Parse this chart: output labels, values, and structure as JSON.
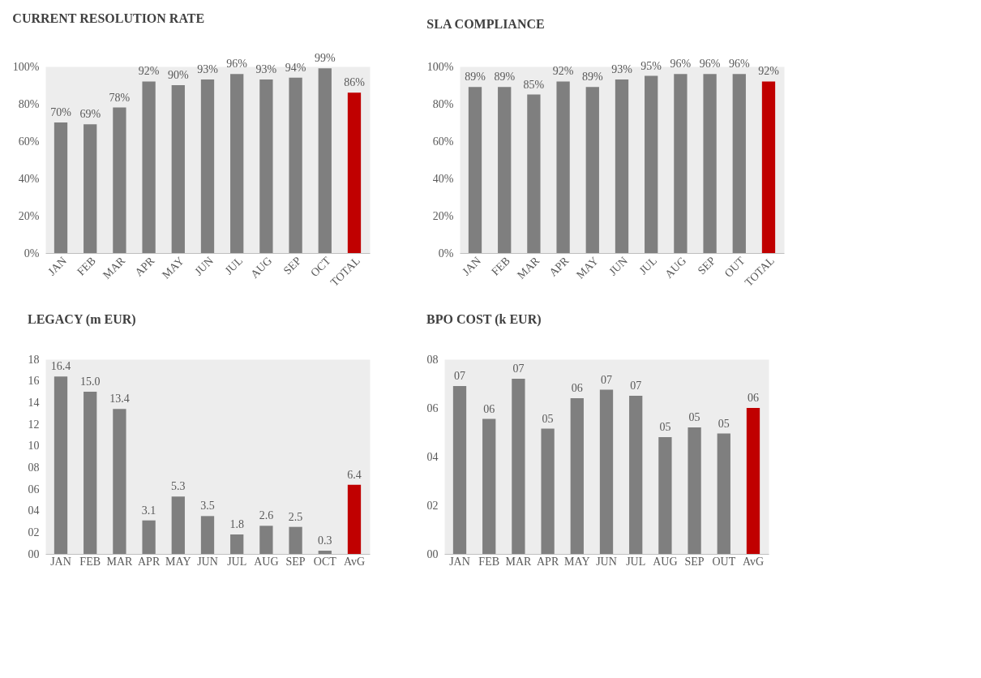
{
  "chart_data": [
    {
      "type": "bar",
      "title": "CURRENT RESOLUTION RATE",
      "categories": [
        "JAN",
        "FEB",
        "MAR",
        "APR",
        "MAY",
        "JUN",
        "JUL",
        "AUG",
        "SEP",
        "OCT",
        "TOTAL"
      ],
      "values": [
        70,
        69,
        78,
        92,
        90,
        93,
        96,
        93,
        94,
        99,
        86
      ],
      "colors": [
        "#7f7f7f",
        "#7f7f7f",
        "#7f7f7f",
        "#7f7f7f",
        "#7f7f7f",
        "#7f7f7f",
        "#7f7f7f",
        "#7f7f7f",
        "#7f7f7f",
        "#7f7f7f",
        "#c00000"
      ],
      "value_labels": [
        "70%",
        "69%",
        "78%",
        "92%",
        "90%",
        "93%",
        "96%",
        "93%",
        "94%",
        "99%",
        "86%"
      ],
      "ylim": [
        0,
        100
      ],
      "yticks": [
        {
          "value": 0,
          "label": "0%"
        },
        {
          "value": 20,
          "label": "20%"
        },
        {
          "value": 40,
          "label": "40%"
        },
        {
          "value": 60,
          "label": "60%"
        },
        {
          "value": 80,
          "label": "80%"
        },
        {
          "value": 100,
          "label": "100%"
        }
      ],
      "grid": false
    },
    {
      "type": "bar",
      "title": "SLA COMPLIANCE",
      "categories": [
        "JAN",
        "FEB",
        "MAR",
        "APR",
        "MAY",
        "JUN",
        "JUL",
        "AUG",
        "SEP",
        "OUT",
        "TOTAL"
      ],
      "values": [
        89,
        89,
        85,
        92,
        89,
        93,
        95,
        96,
        96,
        96,
        92
      ],
      "colors": [
        "#7f7f7f",
        "#7f7f7f",
        "#7f7f7f",
        "#7f7f7f",
        "#7f7f7f",
        "#7f7f7f",
        "#7f7f7f",
        "#7f7f7f",
        "#7f7f7f",
        "#7f7f7f",
        "#c00000"
      ],
      "value_labels": [
        "89%",
        "89%",
        "85%",
        "92%",
        "89%",
        "93%",
        "95%",
        "96%",
        "96%",
        "96%",
        "92%"
      ],
      "ylim": [
        0,
        100
      ],
      "yticks": [
        {
          "value": 0,
          "label": "0%"
        },
        {
          "value": 20,
          "label": "20%"
        },
        {
          "value": 40,
          "label": "40%"
        },
        {
          "value": 60,
          "label": "60%"
        },
        {
          "value": 80,
          "label": "80%"
        },
        {
          "value": 100,
          "label": "100%"
        }
      ],
      "grid": false
    },
    {
      "type": "bar",
      "title": "LEGACY (m EUR)",
      "categories": [
        "JAN",
        "FEB",
        "MAR",
        "APR",
        "MAY",
        "JUN",
        "JUL",
        "AUG",
        "SEP",
        "OCT",
        "AvG"
      ],
      "values": [
        16.4,
        15.0,
        13.4,
        3.1,
        5.3,
        3.5,
        1.8,
        2.6,
        2.5,
        0.3,
        6.4
      ],
      "colors": [
        "#7f7f7f",
        "#7f7f7f",
        "#7f7f7f",
        "#7f7f7f",
        "#7f7f7f",
        "#7f7f7f",
        "#7f7f7f",
        "#7f7f7f",
        "#7f7f7f",
        "#7f7f7f",
        "#c00000"
      ],
      "value_labels": [
        "16.4",
        "15.0",
        "13.4",
        "3.1",
        "5.3",
        "3.5",
        "1.8",
        "2.6",
        "2.5",
        "0.3",
        "6.4"
      ],
      "ylim": [
        0,
        18
      ],
      "yticks": [
        {
          "value": 0,
          "label": "00"
        },
        {
          "value": 2,
          "label": "02"
        },
        {
          "value": 4,
          "label": "04"
        },
        {
          "value": 6,
          "label": "06"
        },
        {
          "value": 8,
          "label": "08"
        },
        10,
        12,
        14,
        16,
        18
      ],
      "grid": false
    },
    {
      "type": "bar",
      "title": "BPO COST (k EUR)",
      "categories": [
        "JAN",
        "FEB",
        "MAR",
        "APR",
        "MAY",
        "JUN",
        "JUL",
        "AUG",
        "SEP",
        "OUT",
        "AvG"
      ],
      "values": [
        6.9,
        5.55,
        7.2,
        5.15,
        6.4,
        6.75,
        6.5,
        4.8,
        5.2,
        4.95,
        6.0
      ],
      "colors": [
        "#7f7f7f",
        "#7f7f7f",
        "#7f7f7f",
        "#7f7f7f",
        "#7f7f7f",
        "#7f7f7f",
        "#7f7f7f",
        "#7f7f7f",
        "#7f7f7f",
        "#7f7f7f",
        "#c00000"
      ],
      "value_labels": [
        "07",
        "06",
        "07",
        "05",
        "06",
        "07",
        "07",
        "05",
        "05",
        "05",
        "06"
      ],
      "ylim": [
        0,
        8
      ],
      "yticks": [
        {
          "value": 0,
          "label": "00"
        },
        {
          "value": 2,
          "label": "02"
        },
        {
          "value": 4,
          "label": "04"
        },
        {
          "value": 6,
          "label": "06"
        },
        {
          "value": 8,
          "label": "08"
        }
      ],
      "grid": false
    }
  ]
}
